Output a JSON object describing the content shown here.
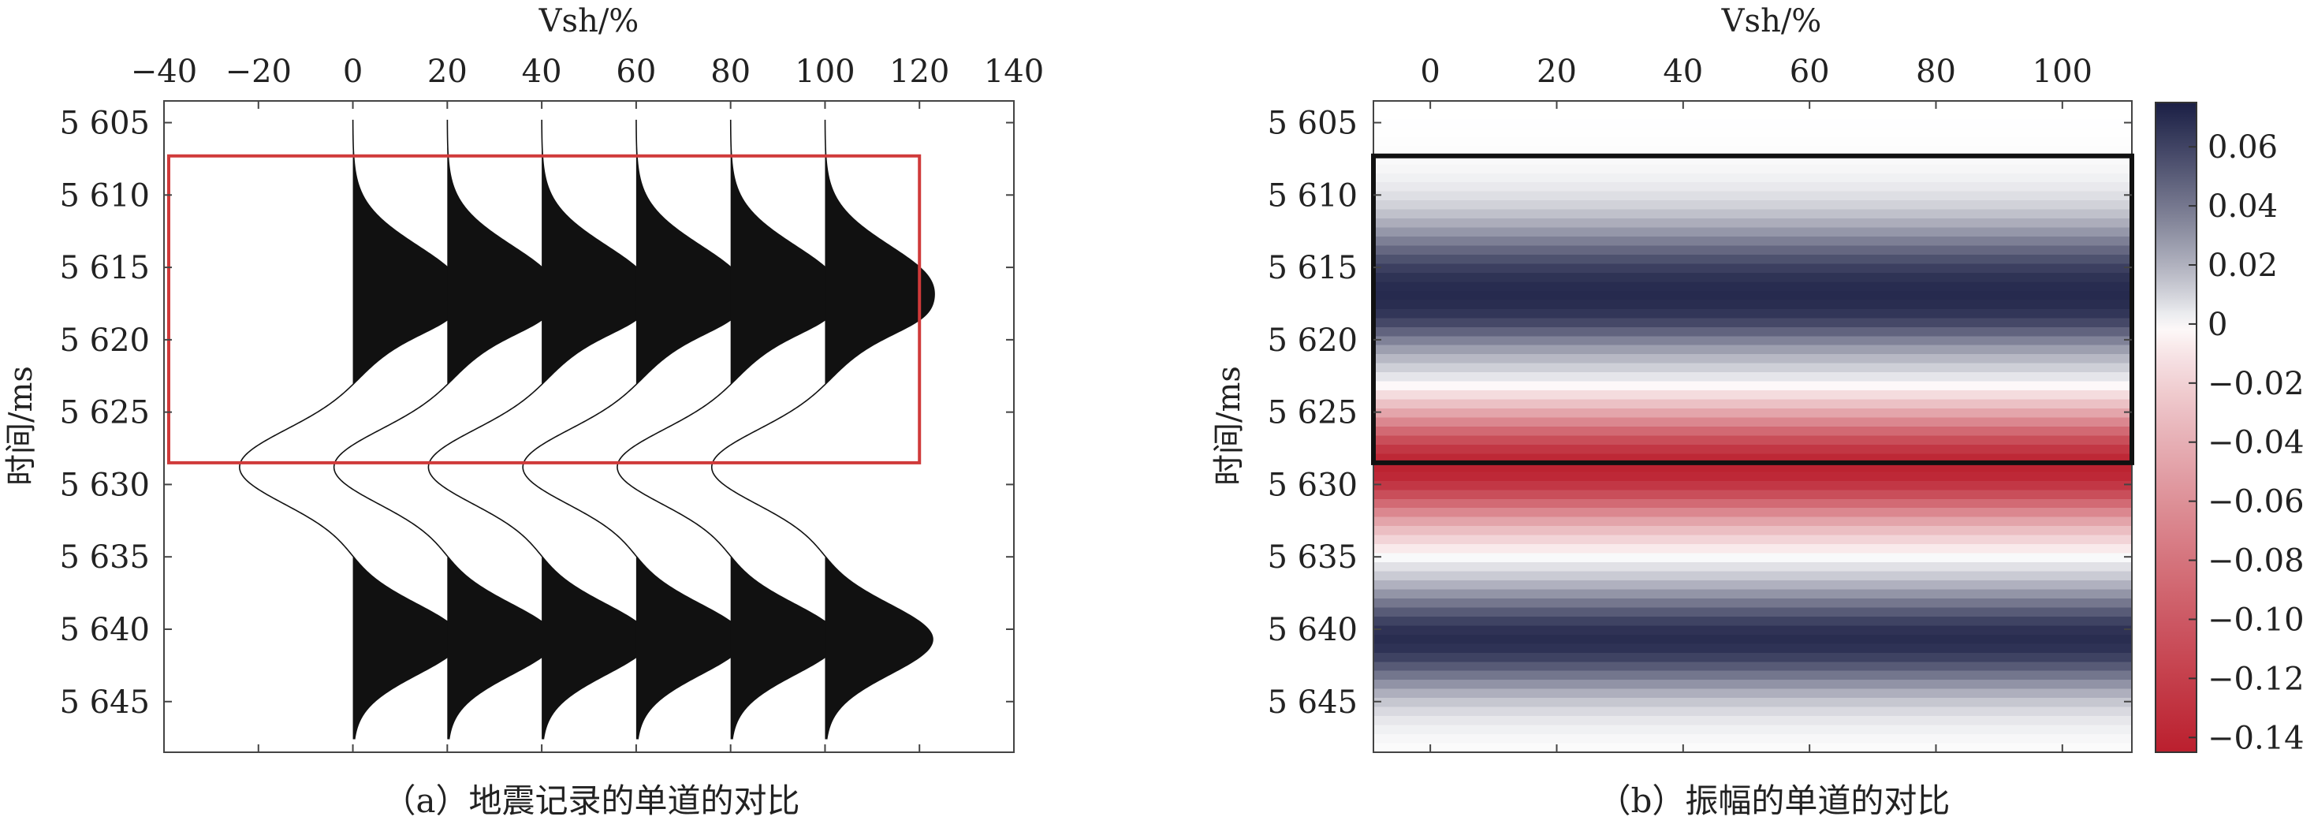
{
  "chart_data": [
    {
      "type": "wiggle-trace",
      "xlabel": "Vsh/%",
      "ylabel": "时间/ms",
      "caption": "（a）地震记录的单道的对比",
      "x_ticks": [
        -40,
        -20,
        0,
        20,
        40,
        60,
        80,
        100,
        120,
        140
      ],
      "x_tick_labels": [
        "−40",
        "−20",
        "0",
        "20",
        "40",
        "60",
        "80",
        "100",
        "120",
        "140"
      ],
      "xlim": [
        -40,
        140
      ],
      "y_ticks": [
        5605,
        5610,
        5615,
        5620,
        5625,
        5630,
        5635,
        5640,
        5645
      ],
      "y_tick_labels": [
        "5 605",
        "5 610",
        "5 615",
        "5 620",
        "5 625",
        "5 630",
        "5 635",
        "5 640",
        "5 645"
      ],
      "ylim": [
        5603.5,
        5648.5
      ],
      "trace_vsh": [
        0,
        20,
        40,
        60,
        80,
        100
      ],
      "trace_fill": "positive",
      "trace_color": "#111111",
      "highlight_box": {
        "x": [
          -39,
          120
        ],
        "y": [
          5607.3,
          5628.5
        ],
        "color": "#d03a3a"
      }
    },
    {
      "type": "heatmap",
      "xlabel": "Vsh/%",
      "ylabel": "时间/ms",
      "caption": "（b）振幅的单道的对比",
      "x_ticks": [
        0,
        20,
        40,
        60,
        80,
        100
      ],
      "x_tick_labels": [
        "0",
        "20",
        "40",
        "60",
        "80",
        "100"
      ],
      "xlim": [
        -9,
        111
      ],
      "y_ticks": [
        5605,
        5610,
        5615,
        5620,
        5625,
        5630,
        5635,
        5640,
        5645
      ],
      "y_tick_labels": [
        "5 605",
        "5 610",
        "5 615",
        "5 620",
        "5 625",
        "5 630",
        "5 635",
        "5 640",
        "5 645"
      ],
      "ylim": [
        5603.5,
        5648.5
      ],
      "colorbar": {
        "ticks": [
          0.06,
          0.04,
          0.02,
          0,
          -0.02,
          -0.04,
          -0.06,
          -0.08,
          -0.1,
          -0.12,
          -0.14
        ],
        "tick_labels": [
          "0.06",
          "0.04",
          "0.02",
          "0",
          "−0.02",
          "−0.04",
          "−0.06",
          "−0.08",
          "−0.10",
          "−0.12",
          "−0.14"
        ],
        "range": [
          -0.145,
          0.075
        ],
        "colors": {
          "negative": "#bb1f2e",
          "zero": "#ffffff",
          "positive": "#1b1f45"
        }
      },
      "highlight_box": {
        "x": [
          -9,
          111
        ],
        "y": [
          5607.3,
          5628.5
        ],
        "color": "#111111"
      }
    }
  ]
}
